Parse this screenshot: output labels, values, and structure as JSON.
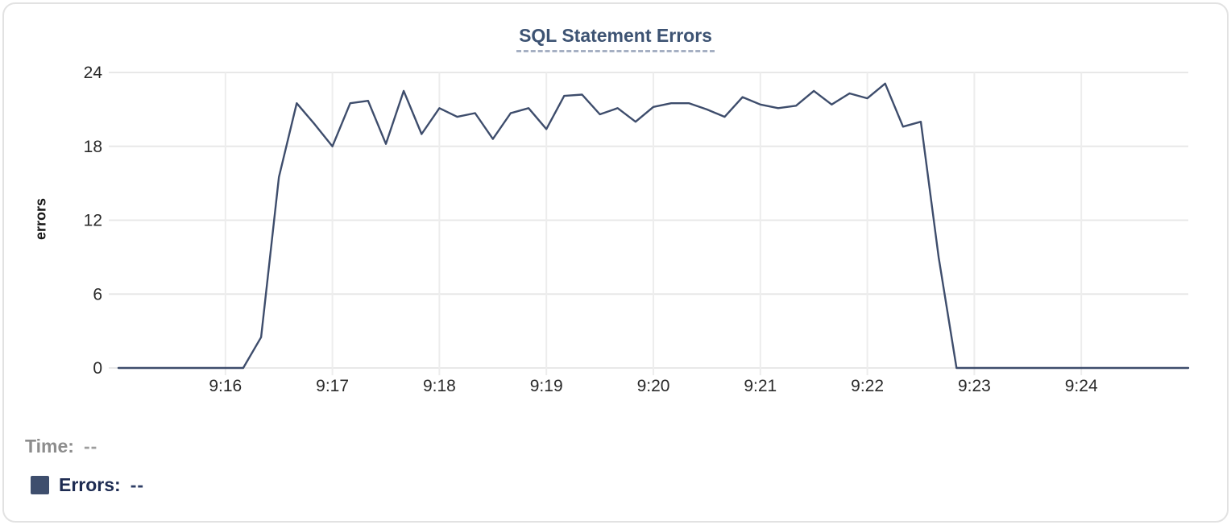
{
  "chart_data": {
    "type": "line",
    "title": "SQL Statement Errors",
    "xlabel": "",
    "ylabel": "errors",
    "x_start": "9:15:00",
    "x_end": "9:25:00",
    "x_interval_seconds": 10,
    "x_tick_labels": [
      "9:16",
      "9:17",
      "9:18",
      "9:19",
      "9:20",
      "9:21",
      "9:22",
      "9:23",
      "9:24"
    ],
    "y_ticks": [
      0,
      6,
      12,
      18,
      24
    ],
    "ylim": [
      0,
      24
    ],
    "grid": true,
    "legend_position": "bottom-left",
    "series": [
      {
        "name": "Errors",
        "values": [
          0,
          0,
          0,
          0,
          0,
          0,
          0,
          0,
          2.5,
          15.5,
          21.5,
          19.8,
          18,
          21.5,
          21.7,
          18.2,
          22.5,
          19,
          21.1,
          20.4,
          20.7,
          18.6,
          20.7,
          21.1,
          19.4,
          22.1,
          22.2,
          20.6,
          21.1,
          20,
          21.2,
          21.5,
          21.5,
          21,
          20.4,
          22,
          21.4,
          21.1,
          21.3,
          22.5,
          21.4,
          22.3,
          21.9,
          23.1,
          19.6,
          20,
          9,
          0,
          0,
          0,
          0,
          0,
          0,
          0,
          0,
          0,
          0,
          0,
          0,
          0,
          0
        ]
      }
    ]
  },
  "legend": {
    "time_label": "Time:",
    "time_value": "--",
    "errors_label": "Errors:",
    "errors_value": "--"
  },
  "colors": {
    "line": "#3e4d6c",
    "swatch": "#3e4e6d",
    "title": "#3d5373",
    "title_underline": "#a6b0c3",
    "grid": "#e8e8e8",
    "grid_vertical": "#ededed",
    "tick_text": "#2a2a2a",
    "axis_label": "#151515",
    "legend_time_text": "#8d8d8d",
    "legend_time_value": "#9d9d9d",
    "legend_errors_text": "#1d2b52",
    "legend_errors_value": "#2e3d65",
    "card_border": "#e2e2e2",
    "card_bg": "#ffffff"
  }
}
